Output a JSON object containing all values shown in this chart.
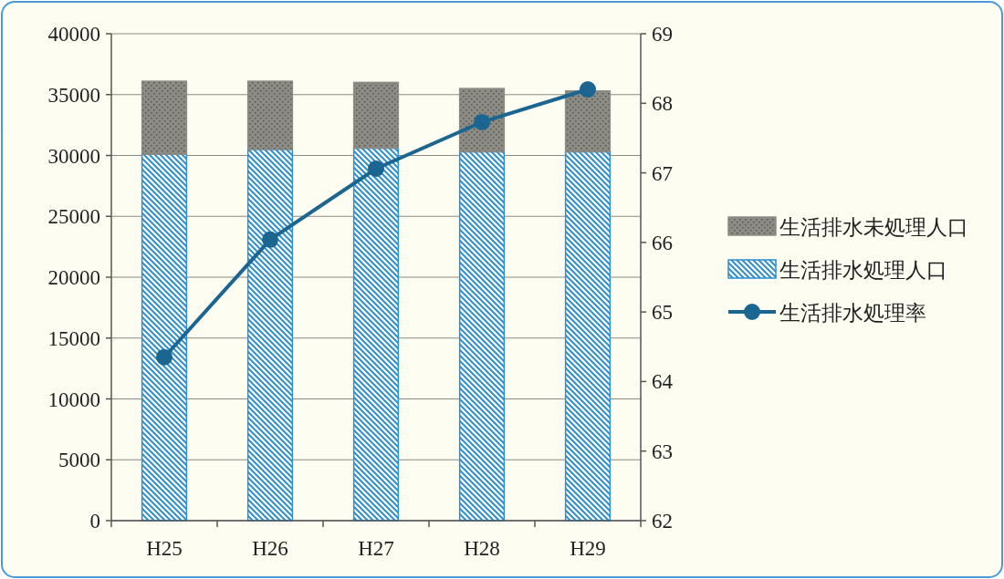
{
  "chart_data": {
    "type": "bar",
    "stacked": true,
    "categories": [
      "H25",
      "H26",
      "H27",
      "H28",
      "H29"
    ],
    "series": [
      {
        "name": "生活排水処理人口",
        "color": "#2e8fd0",
        "values": [
          30100,
          30500,
          30600,
          30300,
          30300
        ]
      },
      {
        "name": "生活排水未処理人口",
        "color": "#8c8c84",
        "values": [
          6000,
          5600,
          5400,
          5200,
          5000
        ]
      },
      {
        "name": "生活排水処理率",
        "type": "line",
        "axis": "y2",
        "color": "#1b6690",
        "marker": "circle",
        "values": [
          64.35,
          66.04,
          67.06,
          67.73,
          68.2
        ]
      }
    ],
    "ylim": [
      0,
      40000
    ],
    "yticks": [
      0,
      5000,
      10000,
      15000,
      20000,
      25000,
      30000,
      35000,
      40000
    ],
    "y2lim": [
      62,
      69
    ],
    "y2ticks": [
      62,
      63,
      64,
      65,
      66,
      67,
      68,
      69
    ],
    "grid": "y",
    "legend": "right"
  }
}
